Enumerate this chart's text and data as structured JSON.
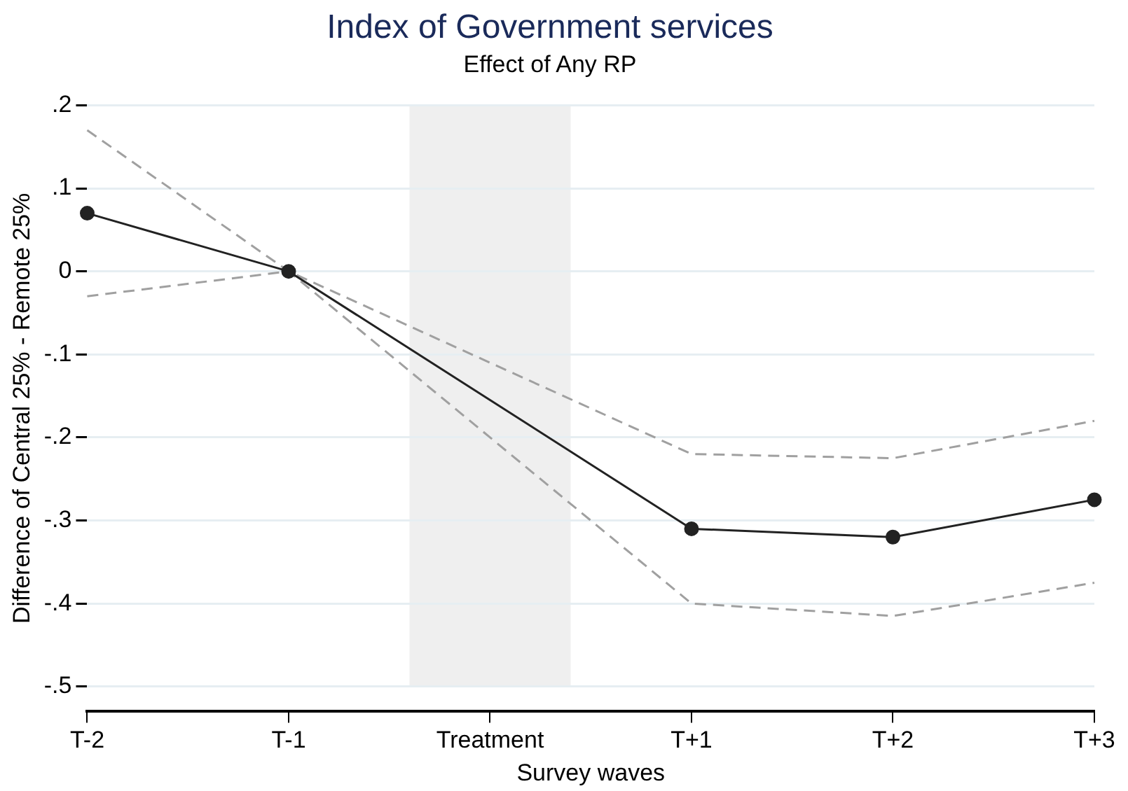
{
  "chart_data": {
    "type": "line",
    "title": "Index of Government services",
    "subtitle": "Effect of Any RP",
    "xlabel": "Survey waves",
    "ylabel": "Difference of Central 25% - Remote 25%",
    "categories": [
      "T-2",
      "T-1",
      "Treatment",
      "T+1",
      "T+2",
      "T+3"
    ],
    "series": [
      {
        "color": "#222222",
        "values": [
          0.07,
          0,
          null,
          -0.31,
          -0.32,
          -0.275
        ],
        "marker": "circle",
        "line_style": "solid"
      },
      {
        "color": "#a0a0a0",
        "values": [
          0.17,
          0,
          null,
          -0.22,
          -0.225,
          -0.18
        ],
        "marker": "none",
        "line_style": "dashed"
      },
      {
        "color": "#a0a0a0",
        "values": [
          -0.03,
          0,
          null,
          -0.4,
          -0.415,
          -0.375
        ],
        "marker": "none",
        "line_style": "dashed"
      }
    ],
    "ylim": [
      -0.53,
      0.2
    ],
    "yticks": [
      {
        "value": 0.2,
        "label": ".2"
      },
      {
        "value": 0.1,
        "label": ".1"
      },
      {
        "value": 0,
        "label": "0"
      },
      {
        "value": -0.1,
        "label": "-.1"
      },
      {
        "value": -0.2,
        "label": "-.2"
      },
      {
        "value": -0.3,
        "label": "-.3"
      },
      {
        "value": -0.4,
        "label": "-.4"
      },
      {
        "value": -0.5,
        "label": "-.5"
      }
    ],
    "bands": [
      {
        "axis": "x",
        "from": "Treatment",
        "to": "Treatment",
        "color": "#efefef"
      }
    ],
    "grid": "y",
    "legend": false
  }
}
